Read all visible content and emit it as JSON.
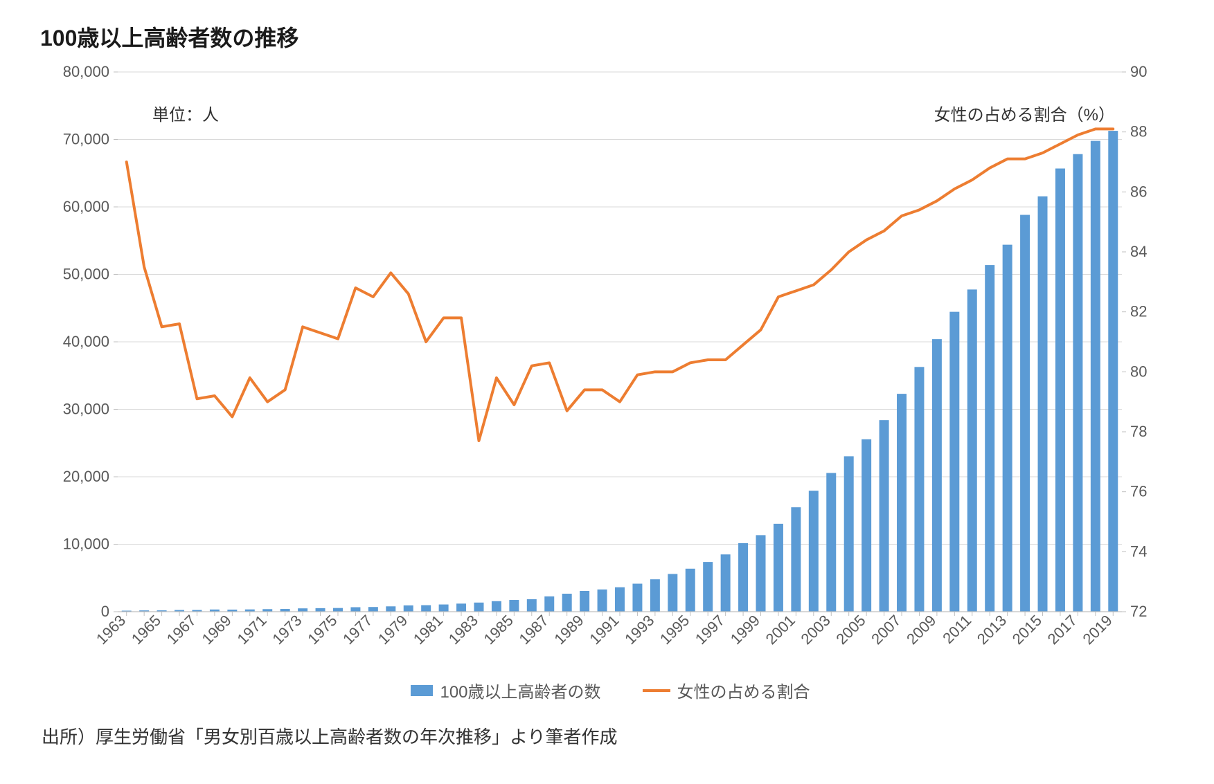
{
  "title": "100歳以上高齢者数の推移",
  "unit_label": "単位：人",
  "right_axis_label": "女性の占める割合（%）",
  "legend": {
    "bar_label": "100歳以上高齢者の数",
    "line_label": "女性の占める割合"
  },
  "source_text": "出所）厚生労働省「男女別百歳以上高齢者数の年次推移」より筆者作成",
  "chart": {
    "type": "bar+line",
    "background_color": "#ffffff",
    "grid_color": "#d9d9d9",
    "axis_color": "#bfbfbf",
    "tick_text_color": "#595959",
    "bar_color": "#5b9bd5",
    "line_color": "#ed7d31",
    "line_width": 4,
    "bar_width_ratio": 0.55,
    "title_fontsize": 32,
    "axis_fontsize": 22,
    "inner_label_fontsize": 24,
    "y_left": {
      "min": 0,
      "max": 80000,
      "ticks": [
        0,
        10000,
        20000,
        30000,
        40000,
        50000,
        60000,
        70000,
        80000
      ]
    },
    "y_right": {
      "min": 72,
      "max": 90,
      "ticks": [
        72,
        74,
        76,
        78,
        80,
        82,
        84,
        86,
        88,
        90
      ]
    },
    "x_tick_step": 2,
    "years": [
      1963,
      1964,
      1965,
      1966,
      1967,
      1968,
      1969,
      1970,
      1971,
      1972,
      1973,
      1974,
      1975,
      1976,
      1977,
      1978,
      1979,
      1980,
      1981,
      1982,
      1983,
      1984,
      1985,
      1986,
      1987,
      1988,
      1989,
      1990,
      1991,
      1992,
      1993,
      1994,
      1995,
      1996,
      1997,
      1998,
      1999,
      2000,
      2001,
      2002,
      2003,
      2004,
      2005,
      2006,
      2007,
      2008,
      2009,
      2010,
      2011,
      2012,
      2013,
      2014,
      2015,
      2016,
      2017,
      2018,
      2019
    ],
    "bars": [
      153,
      191,
      198,
      252,
      253,
      327,
      310,
      339,
      381,
      405,
      495,
      527,
      548,
      666,
      697,
      792,
      937,
      968,
      1072,
      1200,
      1354,
      1563,
      1740,
      1851,
      2271,
      2668,
      3078,
      3298,
      3625,
      4152,
      4802,
      5593,
      6378,
      7373,
      8491,
      10158,
      11346,
      13036,
      15475,
      17934,
      20561,
      23038,
      25554,
      28395,
      32295,
      36276,
      40399,
      44449,
      47756,
      51376,
      54397,
      58820,
      61568,
      65692,
      67824,
      69785,
      71274
    ],
    "line_values": [
      87.0,
      83.5,
      81.5,
      81.6,
      79.1,
      79.2,
      78.5,
      79.8,
      79.0,
      79.4,
      81.5,
      81.3,
      81.1,
      82.8,
      82.5,
      83.3,
      82.6,
      81.0,
      81.8,
      81.8,
      77.7,
      79.8,
      78.9,
      80.2,
      80.3,
      78.7,
      79.4,
      79.4,
      79.0,
      79.9,
      80.0,
      80.0,
      80.3,
      80.4,
      80.4,
      80.9,
      81.4,
      82.5,
      82.7,
      82.9,
      83.4,
      84.0,
      84.4,
      84.7,
      85.2,
      85.4,
      85.7,
      86.1,
      86.4,
      86.8,
      87.1,
      87.1,
      87.3,
      87.6,
      87.9,
      88.1,
      88.1
    ]
  }
}
